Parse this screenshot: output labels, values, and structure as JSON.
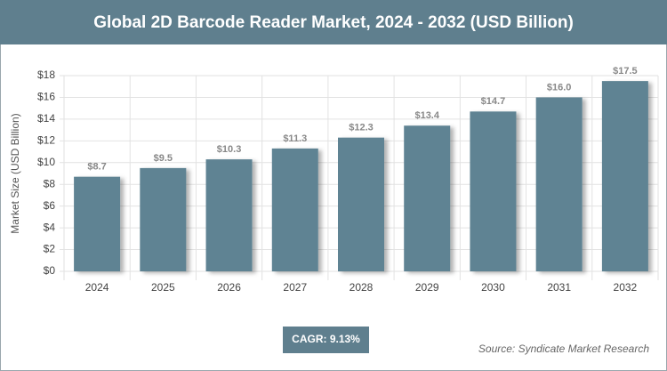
{
  "chart_data": {
    "type": "bar",
    "title": "Global 2D Barcode Reader Market, 2024 - 2032 (USD Billion)",
    "y_label": "Market Size (USD Billion)",
    "categories": [
      "2024",
      "2025",
      "2026",
      "2027",
      "2028",
      "2029",
      "2030",
      "2031",
      "2032"
    ],
    "values": [
      8.7,
      9.5,
      10.3,
      11.3,
      12.3,
      13.4,
      14.7,
      16.0,
      17.5
    ],
    "value_labels": [
      "$8.7",
      "$9.5",
      "$10.3",
      "$11.3",
      "$12.3",
      "$13.4",
      "$14.7",
      "$16.0",
      "$17.5"
    ],
    "color": "#5f8393",
    "ylim": [
      0,
      18
    ],
    "yticks": [
      {
        "value": 0,
        "label": "$0"
      },
      {
        "value": 2,
        "label": "$2"
      },
      {
        "value": 4,
        "label": "$4"
      },
      {
        "value": 6,
        "label": "$6"
      },
      {
        "value": 8,
        "label": "$8"
      },
      {
        "value": 10,
        "label": "$10"
      },
      {
        "value": 12,
        "label": "$12"
      },
      {
        "value": 14,
        "label": "$14"
      },
      {
        "value": 16,
        "label": "$16"
      },
      {
        "value": 18,
        "label": "$18"
      }
    ],
    "grid": true,
    "annotation": "CAGR: 9.13%",
    "source": "Source: Syndicate Market Research"
  }
}
